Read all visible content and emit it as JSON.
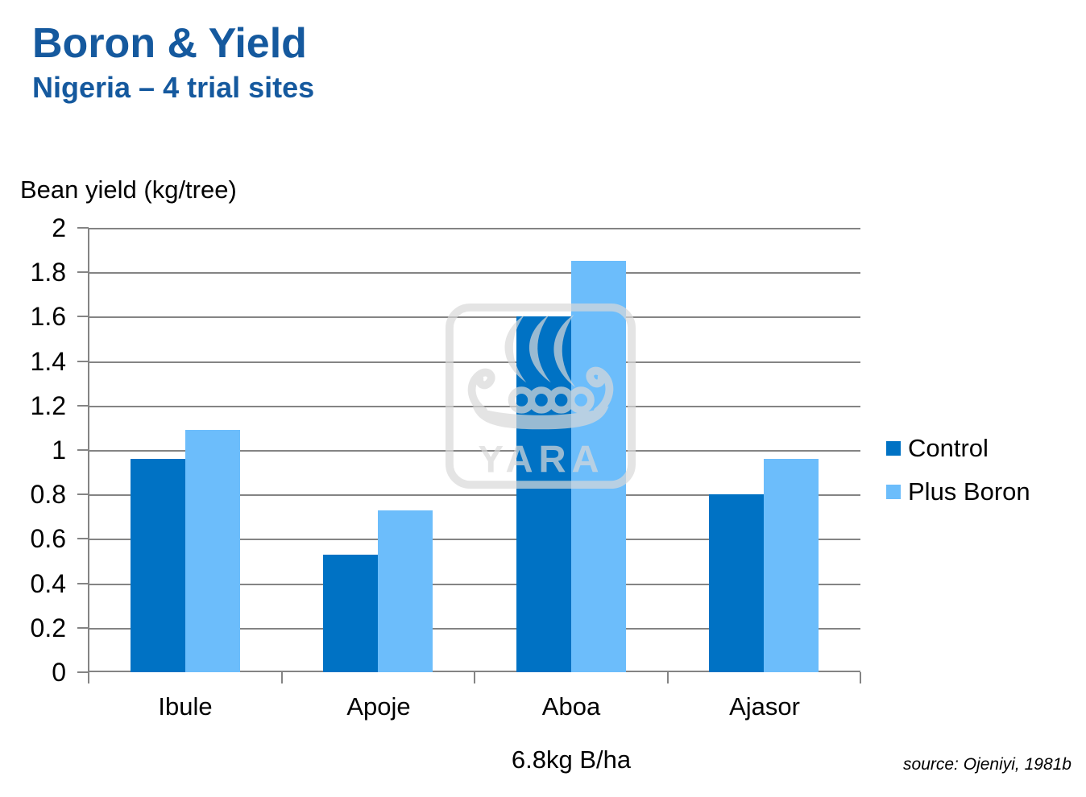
{
  "header": {
    "title": "Boron & Yield",
    "subtitle": "Nigeria – 4 trial sites",
    "title_color": "#15599E"
  },
  "chart_data": {
    "type": "bar",
    "title": "Boron & Yield",
    "subtitle": "Nigeria – 4 trial sites",
    "ylabel": "Bean yield (kg/tree)",
    "xlabel": "",
    "categories": [
      "Ibule",
      "Apoje",
      "Aboa",
      "Ajasor"
    ],
    "series": [
      {
        "name": "Control",
        "color": "#0072C4",
        "values": [
          0.96,
          0.53,
          1.6,
          0.8
        ]
      },
      {
        "name": "Plus Boron",
        "color": "#6CBDFB",
        "values": [
          1.09,
          0.73,
          1.85,
          0.96
        ]
      }
    ],
    "ylim": [
      0,
      2
    ],
    "ytick_labels": [
      "2",
      "1.8",
      "1.6",
      "1.4",
      "1.2",
      "1",
      "0.8",
      "0.6",
      "0.4",
      "0.2",
      "0"
    ],
    "grid": true,
    "gridline_color": "#848484",
    "legend_position": "right",
    "footnote": "6.8kg B/ha"
  },
  "watermark": {
    "text": "YARA",
    "color": "#D9D9D9"
  },
  "source": "source: Ojeniyi, 1981b"
}
